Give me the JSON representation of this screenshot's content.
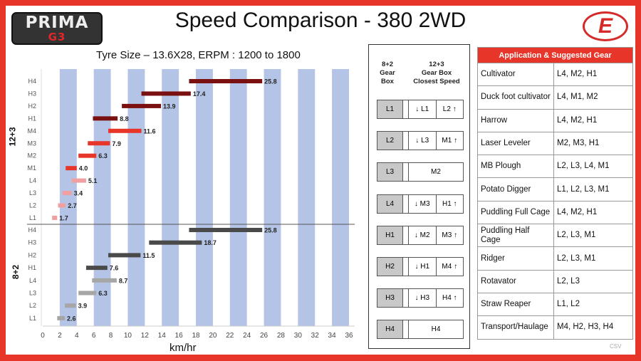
{
  "title": "Speed Comparison - 380 2WD",
  "logos": {
    "left": "PRIMA G3",
    "right": "E"
  },
  "subtitle": "Tyre Size – 13.6X28, ERPM : 1200 to 1800",
  "watermark": "CSV",
  "colors": {
    "frame": "#e8352a",
    "band": "#b4c4e6",
    "L_12": "#f0a0a0",
    "M_12": "#e8352a",
    "H_12": "#7a1010",
    "L_8": "#a6a6a6",
    "H_8": "#4a4a4a"
  },
  "chart_data": {
    "type": "bar",
    "orientation": "horizontal-range",
    "xlabel": "km/hr",
    "xlim": [
      0,
      36
    ],
    "xticks": [
      0,
      2,
      4,
      6,
      8,
      10,
      12,
      14,
      16,
      18,
      20,
      22,
      24,
      26,
      28,
      30,
      32,
      34,
      36
    ],
    "groups": [
      {
        "name": "12+3",
        "gears": [
          {
            "gear": "H4",
            "start": 17.2,
            "end": 25.8,
            "color": "H_12"
          },
          {
            "gear": "H3",
            "start": 11.6,
            "end": 17.4,
            "color": "H_12"
          },
          {
            "gear": "H2",
            "start": 9.3,
            "end": 13.9,
            "color": "H_12"
          },
          {
            "gear": "H1",
            "start": 5.9,
            "end": 8.8,
            "color": "H_12"
          },
          {
            "gear": "M4",
            "start": 7.7,
            "end": 11.6,
            "color": "M_12"
          },
          {
            "gear": "M3",
            "start": 5.3,
            "end": 7.9,
            "color": "M_12"
          },
          {
            "gear": "M2",
            "start": 4.2,
            "end": 6.3,
            "color": "M_12"
          },
          {
            "gear": "M1",
            "start": 2.7,
            "end": 4.0,
            "color": "M_12"
          },
          {
            "gear": "L4",
            "start": 3.4,
            "end": 5.1,
            "color": "L_12"
          },
          {
            "gear": "L3",
            "start": 2.3,
            "end": 3.4,
            "color": "L_12"
          },
          {
            "gear": "L2",
            "start": 1.8,
            "end": 2.7,
            "color": "L_12"
          },
          {
            "gear": "L1",
            "start": 1.1,
            "end": 1.7,
            "color": "L_12"
          }
        ]
      },
      {
        "name": "8+2",
        "gears": [
          {
            "gear": "H4",
            "start": 17.2,
            "end": 25.8,
            "color": "H_8"
          },
          {
            "gear": "H3",
            "start": 12.5,
            "end": 18.7,
            "color": "H_8"
          },
          {
            "gear": "H2",
            "start": 7.7,
            "end": 11.5,
            "color": "H_8"
          },
          {
            "gear": "H1",
            "start": 5.1,
            "end": 7.6,
            "color": "H_8"
          },
          {
            "gear": "L4",
            "start": 5.8,
            "end": 8.7,
            "color": "L_8"
          },
          {
            "gear": "L3",
            "start": 4.2,
            "end": 6.3,
            "color": "L_8"
          },
          {
            "gear": "L2",
            "start": 2.6,
            "end": 3.9,
            "color": "L_8"
          },
          {
            "gear": "L1",
            "start": 1.7,
            "end": 2.6,
            "color": "L_8"
          }
        ]
      }
    ]
  },
  "mapping": {
    "header_left": [
      "8+2",
      "Gear",
      "Box"
    ],
    "header_right": [
      "12+3",
      "Gear Box",
      "Closest Speed"
    ],
    "rows": [
      {
        "gear": "L1",
        "down": "↓ L1",
        "up": "L2 ↑"
      },
      {
        "gear": "L2",
        "down": "↓ L3",
        "up": "M1 ↑"
      },
      {
        "gear": "L3",
        "single": "M2"
      },
      {
        "gear": "L4",
        "down": "↓ M3",
        "up": "H1 ↑"
      },
      {
        "gear": "H1",
        "down": "↓ M2",
        "up": "M3 ↑"
      },
      {
        "gear": "H2",
        "down": "↓ H1",
        "up": "M4 ↑"
      },
      {
        "gear": "H3",
        "down": "↓ H3",
        "up": "H4 ↑"
      },
      {
        "gear": "H4",
        "single": "H4"
      }
    ]
  },
  "applications": {
    "header": "Application & Suggested Gear",
    "rows": [
      {
        "app": "Cultivator",
        "gears": "L4, M2, H1"
      },
      {
        "app": "Duck foot cultivator",
        "gears": "L4, M1, M2"
      },
      {
        "app": "Harrow",
        "gears": "L4, M2, H1"
      },
      {
        "app": "Laser Leveler",
        "gears": "M2, M3, H1"
      },
      {
        "app": "MB Plough",
        "gears": "L2, L3, L4, M1"
      },
      {
        "app": "Potato Digger",
        "gears": "L1, L2, L3, M1"
      },
      {
        "app": "Puddling Full Cage",
        "gears": "L4, M2, H1"
      },
      {
        "app": "Puddling Half Cage",
        "gears": "L2, L3, M1"
      },
      {
        "app": "Ridger",
        "gears": "L2, L3, M1"
      },
      {
        "app": "Rotavator",
        "gears": "L2, L3"
      },
      {
        "app": "Straw Reaper",
        "gears": "L1, L2"
      },
      {
        "app": "Transport/Haulage",
        "gears": "M4, H2, H3, H4"
      }
    ]
  }
}
